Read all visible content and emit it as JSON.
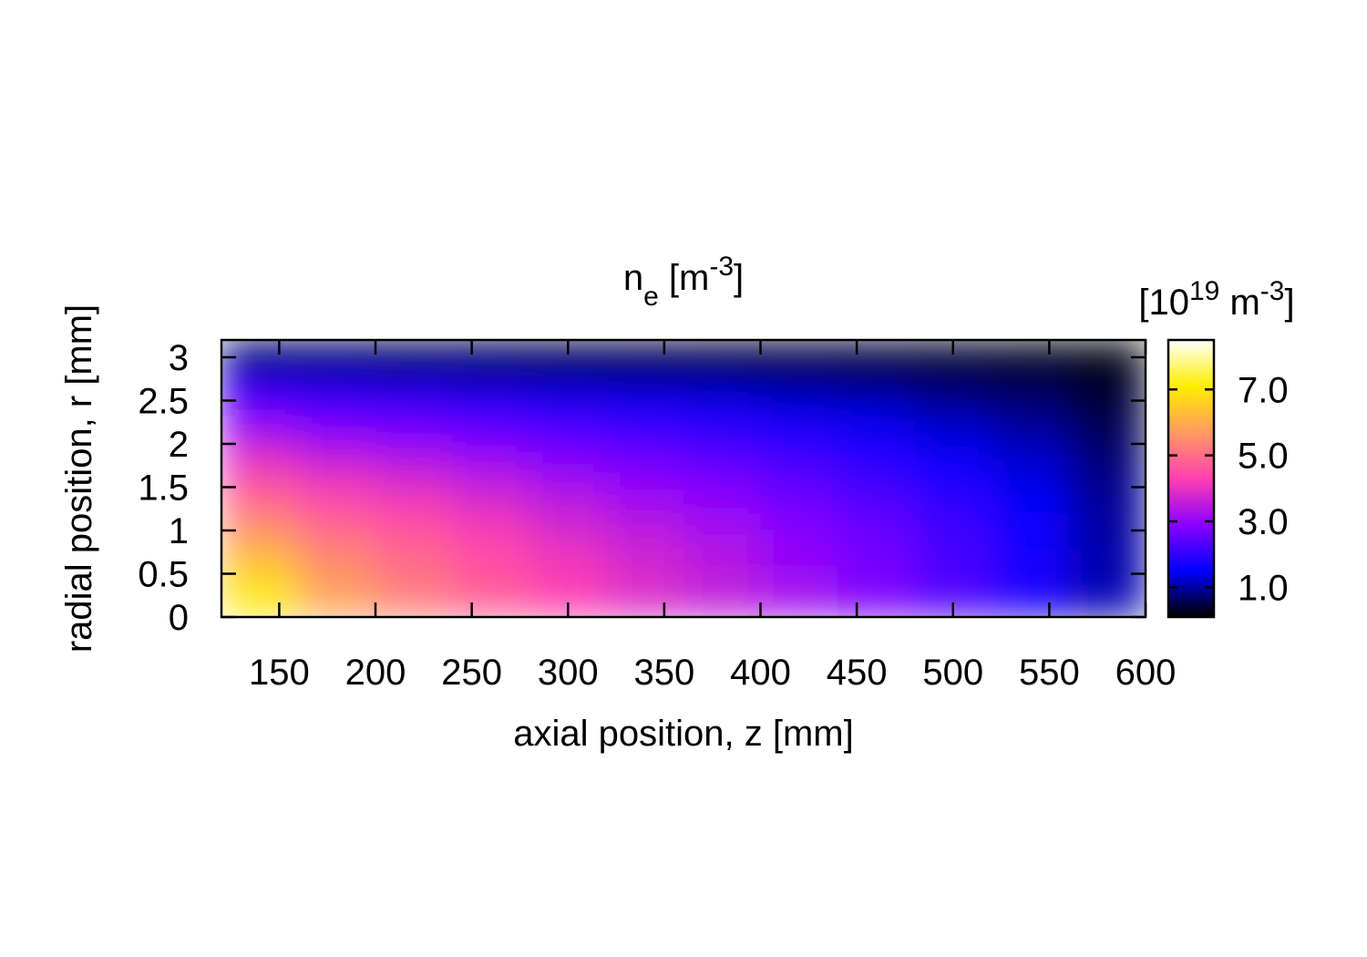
{
  "chart_data": {
    "type": "heatmap",
    "title": [
      {
        "text": "n"
      },
      {
        "text": "e",
        "shift": "sub"
      },
      {
        "text": " [m"
      },
      {
        "text": "-3",
        "shift": "sup"
      },
      {
        "text": "]"
      }
    ],
    "colorbar_label": [
      {
        "text": "[10"
      },
      {
        "text": "19",
        "shift": "sup"
      },
      {
        "text": " m"
      },
      {
        "text": "-3",
        "shift": "sup"
      },
      {
        "text": "]"
      }
    ],
    "x_label": "axial position, z [mm]",
    "y_label": "radial position, r [mm]",
    "xlim": [
      120,
      600
    ],
    "ylim": [
      0,
      3.2
    ],
    "xticks": [
      150,
      200,
      250,
      300,
      350,
      400,
      450,
      500,
      550,
      600
    ],
    "yticks": [
      0,
      0.5,
      1,
      1.5,
      2,
      2.5,
      3
    ],
    "cblim": [
      0.1,
      8.5
    ],
    "cbticks": [
      {
        "value": 1,
        "label": "1.0"
      },
      {
        "value": 3,
        "label": "3.0"
      },
      {
        "value": 5,
        "label": "5.0"
      },
      {
        "value": 7,
        "label": "7.0"
      }
    ],
    "palette": [
      "#000000",
      "#0000ff",
      "#8a00ff",
      "#ff40b0",
      "#ff9a60",
      "#ffee00",
      "#ffffff"
    ],
    "x": [
      140,
      180,
      220,
      260,
      300,
      340,
      380,
      420,
      460,
      500,
      540,
      580
    ],
    "y": [
      0.1,
      0.3,
      0.5,
      0.7,
      0.9,
      1.1,
      1.3,
      1.5,
      1.7,
      1.9,
      2.1,
      2.3,
      2.5,
      2.7,
      2.9,
      3.1
    ],
    "z": [
      [
        7.2,
        7.0,
        6.6,
        6.2,
        5.8,
        5.4,
        5.0,
        4.6,
        4.2,
        3.8,
        3.3,
        2.8,
        2.2,
        1.5,
        0.8,
        0.3
      ],
      [
        5.9,
        5.8,
        5.6,
        5.4,
        5.1,
        4.8,
        4.5,
        4.2,
        3.8,
        3.4,
        3.0,
        2.5,
        2.0,
        1.4,
        0.8,
        0.3
      ],
      [
        5.3,
        5.2,
        5.1,
        4.9,
        4.7,
        4.5,
        4.2,
        3.9,
        3.6,
        3.2,
        2.8,
        2.4,
        1.9,
        1.3,
        0.7,
        0.3
      ],
      [
        4.8,
        4.7,
        4.6,
        4.5,
        4.3,
        4.1,
        3.9,
        3.6,
        3.3,
        3.0,
        2.6,
        2.2,
        1.8,
        1.2,
        0.7,
        0.3
      ],
      [
        4.3,
        4.3,
        4.2,
        4.1,
        3.9,
        3.7,
        3.5,
        3.3,
        3.0,
        2.7,
        2.4,
        2.0,
        1.6,
        1.1,
        0.6,
        0.2
      ],
      [
        3.9,
        3.9,
        3.8,
        3.7,
        3.6,
        3.4,
        3.2,
        3.0,
        2.8,
        2.5,
        2.2,
        1.9,
        1.5,
        1.0,
        0.6,
        0.2
      ],
      [
        3.6,
        3.5,
        3.5,
        3.4,
        3.3,
        3.1,
        3.0,
        2.8,
        2.6,
        2.3,
        2.0,
        1.7,
        1.4,
        1.0,
        0.5,
        0.2
      ],
      [
        3.2,
        3.2,
        3.1,
        3.0,
        2.9,
        2.8,
        2.7,
        2.5,
        2.3,
        2.1,
        1.8,
        1.5,
        1.2,
        0.9,
        0.5,
        0.2
      ],
      [
        2.8,
        2.8,
        2.7,
        2.7,
        2.6,
        2.5,
        2.4,
        2.2,
        2.0,
        1.8,
        1.6,
        1.4,
        1.1,
        0.8,
        0.4,
        0.2
      ],
      [
        2.3,
        2.3,
        2.3,
        2.2,
        2.2,
        2.1,
        2.0,
        1.8,
        1.7,
        1.5,
        1.3,
        1.1,
        0.9,
        0.6,
        0.4,
        0.1
      ],
      [
        1.8,
        1.8,
        1.7,
        1.7,
        1.6,
        1.6,
        1.5,
        1.4,
        1.3,
        1.2,
        1.0,
        0.9,
        0.7,
        0.5,
        0.3,
        0.1
      ],
      [
        1.1,
        1.1,
        1.1,
        1.0,
        1.0,
        1.0,
        0.9,
        0.9,
        0.8,
        0.7,
        0.6,
        0.5,
        0.4,
        0.3,
        0.2,
        0.1
      ]
    ]
  }
}
